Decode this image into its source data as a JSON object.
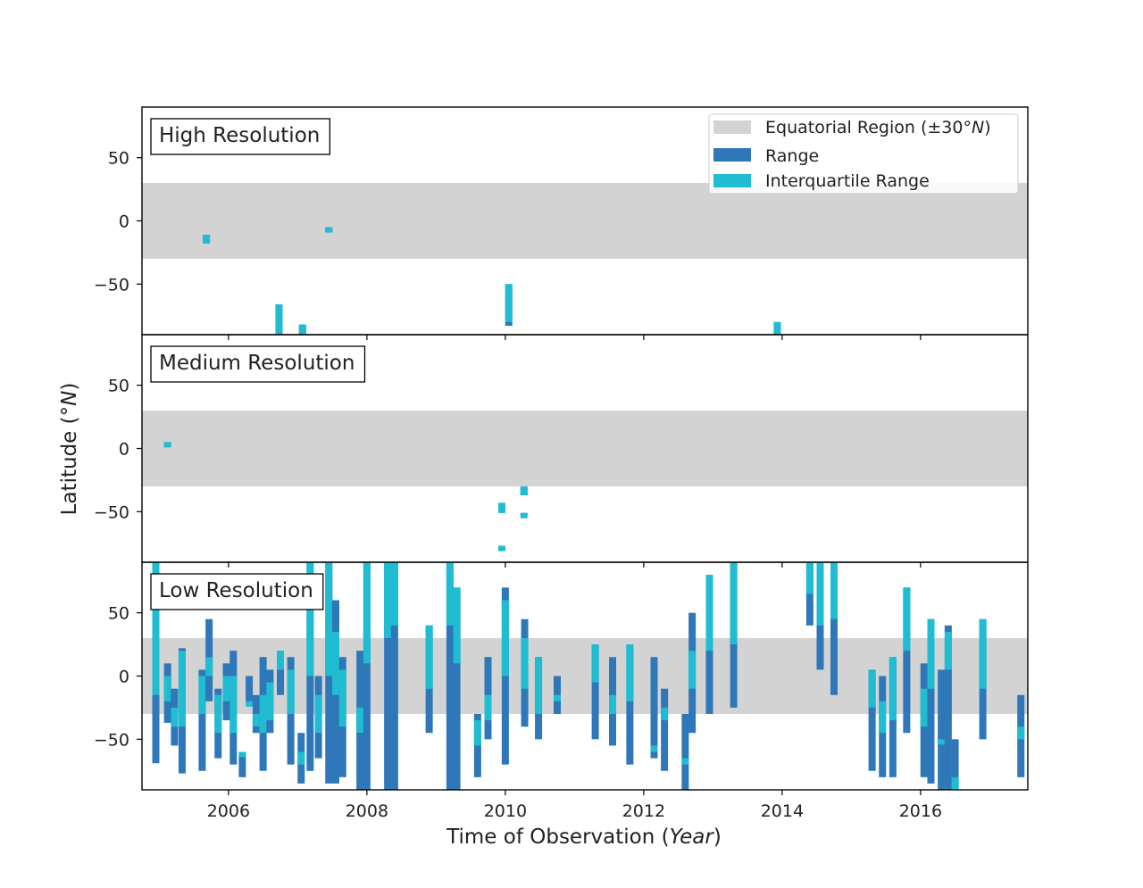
{
  "chart_data": {
    "type": "bar",
    "xlabel": "Time of Observation (",
    "xlabel_unit": "Year",
    "xlabel_close": ")",
    "ylabel": "Latitude (°",
    "ylabel_unit": "N",
    "ylabel_close": ")",
    "xlim": [
      2004.75,
      2017.55
    ],
    "ylim": [
      -90,
      90
    ],
    "x_ticks": [
      2006,
      2008,
      2010,
      2012,
      2014,
      2016
    ],
    "x_tick_labels": [
      "2006",
      "2008",
      "2010",
      "2012",
      "2014",
      "2016"
    ],
    "y_ticks": [
      50,
      0,
      -50
    ],
    "y_tick_labels": [
      "50",
      "0",
      "−50"
    ],
    "equatorial_band": [
      -30,
      30
    ],
    "colors": {
      "range": "#2e77b8",
      "iqr": "#1fbcd2",
      "band": "#d3d3d3"
    },
    "legend": {
      "placement": "top-right",
      "entries": [
        {
          "label": "Equatorial Region (±30°",
          "unit": "N",
          "close": ")"
        },
        {
          "label": "Range"
        },
        {
          "label": "Interquartile Range"
        }
      ]
    },
    "panels": [
      {
        "label": "High Resolution",
        "bars": [
          {
            "x": 2005.68,
            "range": [
              -18,
              -11
            ],
            "iqr": [
              -18,
              -11
            ]
          },
          {
            "x": 2006.73,
            "range": [
              -90,
              -66
            ],
            "iqr": [
              -90,
              -66
            ]
          },
          {
            "x": 2007.07,
            "range": [
              -90,
              -82
            ],
            "iqr": [
              -90,
              -82
            ]
          },
          {
            "x": 2007.45,
            "range": [
              -9,
              -5
            ],
            "iqr": [
              -9,
              -5
            ]
          },
          {
            "x": 2010.05,
            "range": [
              -83,
              -50
            ],
            "iqr": [
              -80,
              -50
            ]
          },
          {
            "x": 2013.93,
            "range": [
              -90,
              -80
            ],
            "iqr": [
              -90,
              -80
            ]
          }
        ]
      },
      {
        "label": "Medium Resolution",
        "bars": [
          {
            "x": 2005.12,
            "range": [
              3,
              5
            ],
            "iqr": [
              3,
              5
            ]
          },
          {
            "x": 2009.95,
            "range": [
              -80,
              -77
            ],
            "iqr": [
              -80,
              -77
            ]
          },
          {
            "x": 2009.95,
            "range": [
              -51,
              -43
            ],
            "iqr": [
              -51,
              -43
            ]
          },
          {
            "x": 2010.27,
            "range": [
              -37,
              -30
            ],
            "iqr": [
              -37,
              -30
            ]
          },
          {
            "x": 2010.27,
            "range": [
              -53,
              -51
            ],
            "iqr": [
              -53,
              -51
            ]
          }
        ]
      },
      {
        "label": "Low Resolution",
        "bars": [
          {
            "x": 2004.95,
            "range": [
              -69,
              90
            ],
            "iqr": [
              -15,
              90
            ]
          },
          {
            "x": 2005.12,
            "range": [
              -37,
              10
            ],
            "iqr": [
              -20,
              0
            ]
          },
          {
            "x": 2005.22,
            "range": [
              -55,
              -10
            ],
            "iqr": [
              -40,
              -25
            ]
          },
          {
            "x": 2005.33,
            "range": [
              -77,
              22
            ],
            "iqr": [
              -40,
              20
            ]
          },
          {
            "x": 2005.62,
            "range": [
              -75,
              5
            ],
            "iqr": [
              -30,
              0
            ]
          },
          {
            "x": 2005.72,
            "range": [
              -20,
              45
            ],
            "iqr": [
              0,
              15
            ]
          },
          {
            "x": 2005.85,
            "range": [
              -65,
              -10
            ],
            "iqr": [
              -45,
              -15
            ]
          },
          {
            "x": 2005.97,
            "range": [
              -35,
              10
            ],
            "iqr": [
              -20,
              0
            ]
          },
          {
            "x": 2006.07,
            "range": [
              -70,
              20
            ],
            "iqr": [
              -45,
              0
            ]
          },
          {
            "x": 2006.2,
            "range": [
              -80,
              -60
            ],
            "iqr": [
              -60,
              -60
            ]
          },
          {
            "x": 2006.3,
            "range": [
              -20,
              0
            ],
            "iqr": [
              -20,
              -20
            ]
          },
          {
            "x": 2006.4,
            "range": [
              -45,
              -15
            ],
            "iqr": [
              -40,
              -30
            ]
          },
          {
            "x": 2006.5,
            "range": [
              -75,
              15
            ],
            "iqr": [
              -45,
              -15
            ]
          },
          {
            "x": 2006.6,
            "range": [
              -45,
              5
            ],
            "iqr": [
              -35,
              -5
            ]
          },
          {
            "x": 2006.75,
            "range": [
              -15,
              20
            ],
            "iqr": [
              5,
              20
            ]
          },
          {
            "x": 2006.9,
            "range": [
              -70,
              15
            ],
            "iqr": [
              -30,
              5
            ]
          },
          {
            "x": 2007.05,
            "range": [
              -85,
              -45
            ],
            "iqr": [
              -70,
              -60
            ]
          },
          {
            "x": 2007.18,
            "range": [
              -75,
              90
            ],
            "iqr": [
              0,
              90
            ]
          },
          {
            "x": 2007.3,
            "range": [
              -65,
              0
            ],
            "iqr": [
              -45,
              -15
            ]
          },
          {
            "x": 2007.45,
            "range": [
              -85,
              90
            ],
            "iqr": [
              0,
              90
            ]
          },
          {
            "x": 2007.55,
            "range": [
              -85,
              60
            ],
            "iqr": [
              -15,
              35
            ]
          },
          {
            "x": 2007.65,
            "range": [
              -80,
              15
            ],
            "iqr": [
              -40,
              5
            ]
          },
          {
            "x": 2007.9,
            "range": [
              -90,
              20
            ],
            "iqr": [
              -45,
              -25
            ]
          },
          {
            "x": 2008.0,
            "range": [
              -90,
              90
            ],
            "iqr": [
              10,
              90
            ]
          },
          {
            "x": 2008.3,
            "range": [
              -90,
              90
            ],
            "iqr": [
              30,
              90
            ]
          },
          {
            "x": 2008.4,
            "range": [
              -90,
              90
            ],
            "iqr": [
              40,
              90
            ]
          },
          {
            "x": 2008.9,
            "range": [
              -45,
              40
            ],
            "iqr": [
              -10,
              40
            ]
          },
          {
            "x": 2009.2,
            "range": [
              -90,
              90
            ],
            "iqr": [
              40,
              90
            ]
          },
          {
            "x": 2009.3,
            "range": [
              -90,
              70
            ],
            "iqr": [
              10,
              70
            ]
          },
          {
            "x": 2009.6,
            "range": [
              -80,
              -30
            ],
            "iqr": [
              -55,
              -35
            ]
          },
          {
            "x": 2009.75,
            "range": [
              -50,
              15
            ],
            "iqr": [
              -35,
              -15
            ]
          },
          {
            "x": 2010.0,
            "range": [
              -70,
              70
            ],
            "iqr": [
              0,
              60
            ]
          },
          {
            "x": 2010.28,
            "range": [
              -40,
              45
            ],
            "iqr": [
              -10,
              30
            ]
          },
          {
            "x": 2010.48,
            "range": [
              -50,
              15
            ],
            "iqr": [
              -30,
              15
            ]
          },
          {
            "x": 2010.75,
            "range": [
              -30,
              0
            ],
            "iqr": [
              -20,
              -15
            ]
          },
          {
            "x": 2011.3,
            "range": [
              -50,
              25
            ],
            "iqr": [
              -5,
              25
            ]
          },
          {
            "x": 2011.55,
            "range": [
              -55,
              15
            ],
            "iqr": [
              -30,
              -15
            ]
          },
          {
            "x": 2011.8,
            "range": [
              -70,
              25
            ],
            "iqr": [
              -20,
              25
            ]
          },
          {
            "x": 2012.15,
            "range": [
              -65,
              15
            ],
            "iqr": [
              -60,
              -55
            ]
          },
          {
            "x": 2012.3,
            "range": [
              -75,
              -10
            ],
            "iqr": [
              -35,
              -25
            ]
          },
          {
            "x": 2012.7,
            "range": [
              -45,
              50
            ],
            "iqr": [
              -10,
              20
            ]
          },
          {
            "x": 2012.6,
            "range": [
              -90,
              -30
            ],
            "iqr": [
              -70,
              -65
            ]
          },
          {
            "x": 2012.95,
            "range": [
              -30,
              80
            ],
            "iqr": [
              20,
              80
            ]
          },
          {
            "x": 2013.3,
            "range": [
              -25,
              90
            ],
            "iqr": [
              25,
              90
            ]
          },
          {
            "x": 2014.4,
            "range": [
              40,
              90
            ],
            "iqr": [
              65,
              90
            ]
          },
          {
            "x": 2014.55,
            "range": [
              5,
              90
            ],
            "iqr": [
              40,
              90
            ]
          },
          {
            "x": 2014.75,
            "range": [
              -15,
              90
            ],
            "iqr": [
              45,
              90
            ]
          },
          {
            "x": 2015.3,
            "range": [
              -75,
              5
            ],
            "iqr": [
              -25,
              5
            ]
          },
          {
            "x": 2015.45,
            "range": [
              -80,
              0
            ],
            "iqr": [
              -45,
              -20
            ]
          },
          {
            "x": 2015.6,
            "range": [
              -80,
              15
            ],
            "iqr": [
              -35,
              15
            ]
          },
          {
            "x": 2015.8,
            "range": [
              -45,
              70
            ],
            "iqr": [
              20,
              70
            ]
          },
          {
            "x": 2016.05,
            "range": [
              -80,
              10
            ],
            "iqr": [
              -40,
              -10
            ]
          },
          {
            "x": 2016.15,
            "range": [
              -85,
              45
            ],
            "iqr": [
              -10,
              45
            ]
          },
          {
            "x": 2016.3,
            "range": [
              -90,
              5
            ],
            "iqr": [
              -50,
              -50
            ]
          },
          {
            "x": 2016.4,
            "range": [
              -90,
              40
            ],
            "iqr": [
              5,
              35
            ]
          },
          {
            "x": 2016.5,
            "range": [
              -90,
              -50
            ],
            "iqr": [
              -90,
              -80
            ]
          },
          {
            "x": 2016.9,
            "range": [
              -50,
              45
            ],
            "iqr": [
              -10,
              45
            ]
          },
          {
            "x": 2017.45,
            "range": [
              -80,
              -15
            ],
            "iqr": [
              -50,
              -40
            ]
          }
        ]
      }
    ]
  }
}
